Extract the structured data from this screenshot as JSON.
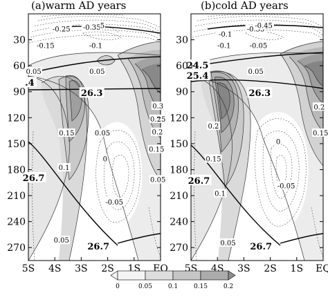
{
  "chart_data": [
    {
      "type": "contour",
      "title": "(a)warm AD years",
      "x_ticks": [
        "5S",
        "4S",
        "3S",
        "2S",
        "1S",
        "EQ"
      ],
      "y_ticks": [
        "30",
        "60",
        "90",
        "120",
        "150",
        "180",
        "210",
        "240",
        "270"
      ],
      "xlim": [
        -5,
        0
      ],
      "ylim": [
        0,
        285
      ],
      "y_inverted": true,
      "contour_labels": [
        {
          "text": "-0.25",
          "x": -3.75,
          "y": 18
        },
        {
          "text": "-0.35",
          "x": -2.6,
          "y": 16
        },
        {
          "text": "5",
          "x": -2.2,
          "y": 14
        },
        {
          "text": "-0.15",
          "x": -4.35,
          "y": 37
        },
        {
          "text": "-0.1",
          "x": -2.45,
          "y": 37
        },
        {
          "text": "0.05",
          "x": -4.8,
          "y": 67
        },
        {
          "text": "0.05",
          "x": -2.4,
          "y": 67
        },
        {
          "text": "0.3",
          "x": -0.1,
          "y": 107
        },
        {
          "text": "0.25",
          "x": -0.1,
          "y": 122
        },
        {
          "text": "0.2",
          "x": -0.12,
          "y": 137
        },
        {
          "text": "0.15",
          "x": -0.15,
          "y": 157
        },
        {
          "text": "0.15",
          "x": -3.55,
          "y": 138
        },
        {
          "text": "0.05",
          "x": -2.2,
          "y": 138
        },
        {
          "text": "0.1",
          "x": -3.65,
          "y": 178
        },
        {
          "text": "0",
          "x": -2.1,
          "y": 168
        },
        {
          "text": "0.05",
          "x": -0.1,
          "y": 192
        },
        {
          "text": "-0.05",
          "x": -1.75,
          "y": 218
        },
        {
          "text": "0.05",
          "x": -3.75,
          "y": 262
        }
      ],
      "isotherm_labels": [
        {
          "text": "26.3",
          "x": -2.6,
          "y": 92
        },
        {
          "text": ".4",
          "x": -4.95,
          "y": 80
        },
        {
          "text": "26.7",
          "x": -4.8,
          "y": 190
        },
        {
          "text": "26.7",
          "x": -2.35,
          "y": 269
        }
      ]
    },
    {
      "type": "contour",
      "title": "(b)cold AD years",
      "x_ticks": [
        "5S",
        "4S",
        "3S",
        "2S",
        "1S",
        "EQ"
      ],
      "y_ticks": [
        "30",
        "60",
        "90",
        "120",
        "150",
        "180",
        "210",
        "240",
        "270"
      ],
      "xlim": [
        -5,
        0
      ],
      "ylim": [
        0,
        285
      ],
      "y_inverted": true,
      "contour_labels": [
        {
          "text": "-0.1",
          "x": -3.7,
          "y": 24
        },
        {
          "text": "-0.35",
          "x": -2.55,
          "y": 18
        },
        {
          "text": "-0.45",
          "x": -2.25,
          "y": 14
        },
        {
          "text": "-0.1",
          "x": -3.75,
          "y": 37
        },
        {
          "text": "-0.05",
          "x": -2.45,
          "y": 37
        },
        {
          "text": "0.05",
          "x": -2.55,
          "y": 67
        },
        {
          "text": "0.2",
          "x": -4.15,
          "y": 130
        },
        {
          "text": "0.15",
          "x": -4.15,
          "y": 168
        },
        {
          "text": "0",
          "x": -1.7,
          "y": 148
        },
        {
          "text": "0.2",
          "x": -0.15,
          "y": 108
        },
        {
          "text": "0.15",
          "x": -0.1,
          "y": 138
        },
        {
          "text": "0.1",
          "x": -3.9,
          "y": 208
        },
        {
          "text": "-0.05",
          "x": -1.4,
          "y": 199
        },
        {
          "text": "0.05",
          "x": -3.6,
          "y": 265
        }
      ],
      "isotherm_labels": [
        {
          "text": "24.5",
          "x": -4.75,
          "y": 60
        },
        {
          "text": "25.4",
          "x": -4.75,
          "y": 72
        },
        {
          "text": "26.3",
          "x": -2.4,
          "y": 92
        },
        {
          "text": "26.7",
          "x": -4.7,
          "y": 193
        },
        {
          "text": "26.7",
          "x": -2.35,
          "y": 269
        }
      ]
    }
  ],
  "colorbar": {
    "ticks": [
      "0",
      "0.05",
      "0.1",
      "0.15",
      "0.2"
    ],
    "colors": [
      "#f4f4f4",
      "#dedede",
      "#c6c6c6",
      "#ababab",
      "#8e8e8e"
    ]
  }
}
